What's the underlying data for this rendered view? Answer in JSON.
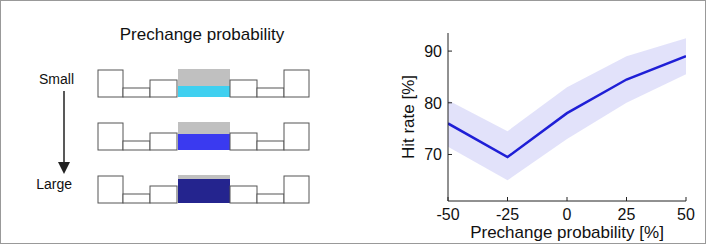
{
  "diagram": {
    "title": "Prechange probability",
    "small_label": "Small",
    "large_label": "Large",
    "rows": [
      {
        "color": "#3fd0f0"
      },
      {
        "color": "#3a3af0"
      },
      {
        "color": "#24248e"
      }
    ]
  },
  "chart_data": {
    "type": "line",
    "x_label": "Prechange probability [%]",
    "y_label": "Hit rate [%]",
    "x": [
      -50,
      -25,
      0,
      25,
      50
    ],
    "series": [
      {
        "color": "#1f1fd6",
        "values": [
          76,
          69.5,
          78,
          84.5,
          89
        ],
        "lower": [
          71.5,
          65,
          73,
          80,
          85.5
        ],
        "upper": [
          80.5,
          74.5,
          83,
          89,
          92.5
        ]
      }
    ],
    "xlim": [
      -50,
      50
    ],
    "xticks": [
      -50,
      -25,
      0,
      25,
      50
    ],
    "ylim": [
      61,
      93.5
    ],
    "yticks": [
      70,
      80,
      90
    ],
    "grid": false
  }
}
